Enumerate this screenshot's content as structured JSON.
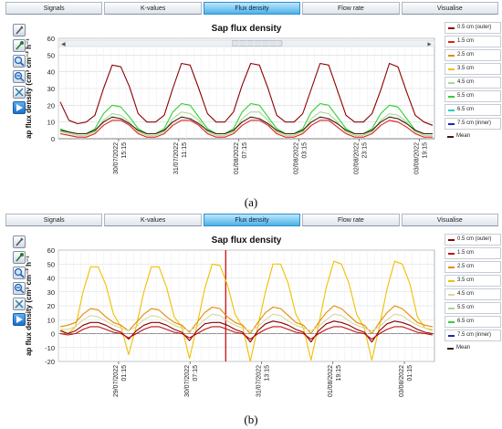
{
  "panels": [
    {
      "id": "a",
      "tabs": [
        {
          "label": "Signals",
          "active": false
        },
        {
          "label": "K-values",
          "active": false
        },
        {
          "label": "Flux density",
          "active": true
        },
        {
          "label": "Flow rate",
          "active": false
        },
        {
          "label": "Visualise",
          "active": false
        }
      ],
      "tools": [
        "wrench-icon",
        "pipette-icon",
        "zoom-in-icon",
        "zoom-out-icon",
        "fit-icon",
        "play-icon"
      ],
      "legend": [
        {
          "label": "0.5 cm (outer)",
          "color": "#8b0000"
        },
        {
          "label": "1.5 cm",
          "color": "#e02010"
        },
        {
          "label": "2.5 cm",
          "color": "#e68a00"
        },
        {
          "label": "3.5 cm",
          "color": "#f0c000"
        },
        {
          "label": "4.5 cm",
          "color": "#a8d890"
        },
        {
          "label": "5.5 cm",
          "color": "#30d030"
        },
        {
          "label": "6.5 cm",
          "color": "#30c8c8"
        },
        {
          "label": "7.5 cm (inner)",
          "color": "#2020c0"
        },
        {
          "label": "Mean",
          "color": "#3a1a10"
        }
      ],
      "chart_data": {
        "type": "line",
        "title": "Sap flux density",
        "ylabel": "ap flux density (cm³ cm⁻² h⁻¹",
        "ylim": [
          0,
          60
        ],
        "yticks": [
          0,
          10,
          20,
          30,
          40,
          50,
          60
        ],
        "xticks": [
          "30/07/2022 15:15",
          "31/07/2022 11:15",
          "01/08/2022 07:15",
          "02/08/2022 03:15",
          "02/08/2022 23:15",
          "03/08/2022 19:15"
        ],
        "grid": true,
        "legend_position": "right",
        "series": [
          {
            "name": "0.5 cm (outer)",
            "values": [
              22,
              11,
              9,
              10,
              14,
              30,
              44,
              43,
              31,
              15,
              10,
              10,
              14,
              30,
              45,
              44,
              30,
              15,
              10,
              10,
              16,
              32,
              45,
              44,
              30,
              14,
              10,
              10,
              15,
              30,
              45,
              44,
              29,
              14,
              10,
              10,
              15,
              29,
              45,
              43,
              28,
              14,
              10,
              8
            ]
          },
          {
            "name": "1.5 cm",
            "values": [
              3,
              2,
              1,
              1,
              3,
              8,
              11,
              11,
              8,
              3,
              1,
              1,
              3,
              8,
              11,
              11,
              8,
              3,
              1,
              1,
              3,
              8,
              11,
              11,
              8,
              3,
              1,
              1,
              3,
              8,
              11,
              11,
              7,
              3,
              1,
              1,
              3,
              8,
              11,
              10,
              7,
              3,
              1,
              1
            ]
          },
          {
            "name": "4.5 cm",
            "values": [
              4,
              3,
              2,
              2,
              4,
              11,
              15,
              14,
              10,
              4,
              2,
              2,
              4,
              12,
              16,
              15,
              11,
              4,
              2,
              2,
              4,
              12,
              16,
              16,
              11,
              4,
              2,
              2,
              4,
              12,
              16,
              15,
              10,
              4,
              2,
              2,
              4,
              11,
              15,
              14,
              10,
              4,
              2,
              2
            ]
          },
          {
            "name": "5.5 cm",
            "values": [
              6,
              4,
              3,
              3,
              6,
              15,
              20,
              19,
              13,
              6,
              3,
              3,
              6,
              16,
              21,
              20,
              13,
              6,
              3,
              3,
              6,
              16,
              21,
              20,
              13,
              6,
              3,
              3,
              6,
              16,
              21,
              20,
              13,
              6,
              3,
              3,
              6,
              15,
              20,
              19,
              12,
              5,
              3,
              3
            ]
          },
          {
            "name": "Mean",
            "values": [
              5,
              4,
              3,
              3,
              5,
              10,
              13,
              12,
              9,
              5,
              3,
              3,
              5,
              10,
              13,
              12,
              9,
              5,
              3,
              3,
              5,
              10,
              13,
              12,
              9,
              5,
              3,
              3,
              5,
              10,
              13,
              12,
              9,
              5,
              3,
              3,
              5,
              10,
              13,
              12,
              9,
              5,
              3,
              3
            ]
          }
        ]
      }
    },
    {
      "id": "b",
      "tabs": [
        {
          "label": "Signals",
          "active": false
        },
        {
          "label": "K-values",
          "active": false
        },
        {
          "label": "Flux density",
          "active": true
        },
        {
          "label": "Flow rate",
          "active": false
        },
        {
          "label": "Visualise",
          "active": false
        }
      ],
      "tools": [
        "wrench-icon",
        "pipette-icon",
        "zoom-in-icon",
        "zoom-out-icon",
        "fit-icon",
        "play-icon"
      ],
      "legend": [
        {
          "label": "0.5 cm (outer)",
          "color": "#8b0000"
        },
        {
          "label": "1.5 cm",
          "color": "#c01010"
        },
        {
          "label": "2.5 cm",
          "color": "#e68a00"
        },
        {
          "label": "3.5 cm",
          "color": "#f0c000"
        },
        {
          "label": "4.5 cm",
          "color": "#d8d8a0"
        },
        {
          "label": "5.5 cm",
          "color": "#a8d890"
        },
        {
          "label": "6.5 cm",
          "color": "#30d030"
        },
        {
          "label": "7.5 cm (inner)",
          "color": "#2020c0"
        },
        {
          "label": "Mean",
          "color": "#3a1a10"
        }
      ],
      "chart_data": {
        "type": "line",
        "title": "Sap flux density",
        "ylabel": "ap flux density (cm³ cm⁻² h⁻¹",
        "ylim": [
          -20,
          60
        ],
        "yticks": [
          -20,
          -10,
          0,
          10,
          20,
          30,
          40,
          50,
          60
        ],
        "xticks": [
          "29/07/2022 01:15",
          "30/07/2022 07:15",
          "31/07/2022 13:15",
          "01/08/2022 19:15",
          "03/08/2022 01:15"
        ],
        "grid": true,
        "legend_position": "right",
        "marker_x": 0.445,
        "series": [
          {
            "name": "3.5 cm",
            "values": [
              3,
              0,
              5,
              30,
              48,
              48,
              35,
              14,
              5,
              -15,
              5,
              30,
              48,
              48,
              33,
              12,
              5,
              -18,
              6,
              32,
              50,
              49,
              35,
              14,
              5,
              -20,
              5,
              30,
              50,
              50,
              36,
              14,
              4,
              -19,
              6,
              33,
              52,
              50,
              36,
              14,
              4,
              -19,
              5,
              32,
              52,
              50,
              36,
              12,
              4,
              2
            ]
          },
          {
            "name": "2.5 cm",
            "values": [
              5,
              6,
              8,
              14,
              18,
              17,
              12,
              8,
              6,
              2,
              8,
              14,
              18,
              17,
              12,
              8,
              6,
              1,
              8,
              15,
              19,
              18,
              12,
              8,
              6,
              0,
              8,
              15,
              19,
              18,
              13,
              8,
              6,
              0,
              8,
              15,
              20,
              18,
              13,
              8,
              6,
              0,
              8,
              15,
              20,
              18,
              13,
              8,
              6,
              5
            ]
          },
          {
            "name": "4.5 cm",
            "values": [
              3,
              3,
              5,
              10,
              13,
              12,
              9,
              6,
              4,
              2,
              5,
              10,
              13,
              12,
              9,
              6,
              4,
              2,
              5,
              10,
              14,
              13,
              9,
              6,
              4,
              2,
              5,
              10,
              14,
              13,
              9,
              6,
              4,
              2,
              5,
              10,
              14,
              13,
              9,
              6,
              4,
              2,
              5,
              10,
              14,
              13,
              9,
              6,
              4,
              3
            ]
          },
          {
            "name": "0.5 cm (outer)",
            "values": [
              2,
              0,
              2,
              6,
              8,
              8,
              6,
              3,
              1,
              -4,
              2,
              6,
              8,
              8,
              6,
              3,
              1,
              -5,
              2,
              7,
              8,
              8,
              6,
              3,
              1,
              -6,
              2,
              7,
              9,
              8,
              6,
              3,
              1,
              -6,
              2,
              7,
              9,
              8,
              6,
              3,
              1,
              -6,
              2,
              7,
              9,
              8,
              6,
              3,
              1,
              0
            ]
          },
          {
            "name": "1.5 cm",
            "values": [
              0,
              -1,
              0,
              3,
              5,
              5,
              3,
              1,
              0,
              -3,
              0,
              3,
              5,
              5,
              3,
              1,
              0,
              -3,
              0,
              3,
              5,
              5,
              3,
              1,
              0,
              -4,
              0,
              3,
              5,
              5,
              3,
              1,
              0,
              -4,
              0,
              3,
              5,
              5,
              3,
              1,
              0,
              -4,
              0,
              3,
              5,
              5,
              3,
              1,
              0,
              -1
            ]
          }
        ]
      }
    }
  ],
  "captions": [
    "(a)",
    "(b)"
  ]
}
